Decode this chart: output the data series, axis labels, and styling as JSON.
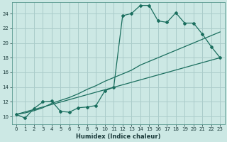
{
  "title": "",
  "xlabel": "Humidex (Indice chaleur)",
  "bg_color": "#cce8e4",
  "grid_color": "#aaccca",
  "line_color": "#1a6e5e",
  "xlim": [
    -0.5,
    23.5
  ],
  "ylim": [
    9.0,
    25.5
  ],
  "xticks": [
    0,
    1,
    2,
    3,
    4,
    5,
    6,
    7,
    8,
    9,
    10,
    11,
    12,
    13,
    14,
    15,
    16,
    17,
    18,
    19,
    20,
    21,
    22,
    23
  ],
  "yticks": [
    10,
    12,
    14,
    16,
    18,
    20,
    22,
    24
  ],
  "line1_x": [
    0,
    1,
    2,
    3,
    4,
    5,
    6,
    7,
    8,
    9,
    10,
    11,
    12,
    13,
    14,
    15,
    16,
    17,
    18,
    19,
    20,
    21,
    22,
    23
  ],
  "line1_y": [
    10.3,
    9.8,
    11.1,
    12.0,
    12.1,
    10.7,
    10.6,
    11.2,
    11.3,
    11.5,
    13.5,
    14.0,
    23.7,
    24.0,
    25.1,
    25.1,
    23.0,
    22.8,
    24.1,
    22.7,
    22.7,
    21.2,
    19.5,
    18.0
  ],
  "line2_x": [
    0,
    1,
    2,
    3,
    4,
    5,
    6,
    7,
    8,
    9,
    10,
    11,
    12,
    13,
    14,
    15,
    16,
    17,
    18,
    19,
    20,
    21,
    22,
    23
  ],
  "line2_y": [
    10.3,
    10.5,
    10.8,
    11.2,
    11.8,
    12.2,
    12.6,
    13.1,
    13.7,
    14.2,
    14.8,
    15.3,
    15.8,
    16.3,
    17.0,
    17.5,
    18.0,
    18.5,
    19.0,
    19.5,
    20.0,
    20.5,
    21.0,
    21.5
  ],
  "line3_x": [
    0,
    23
  ],
  "line3_y": [
    10.3,
    18.0
  ]
}
